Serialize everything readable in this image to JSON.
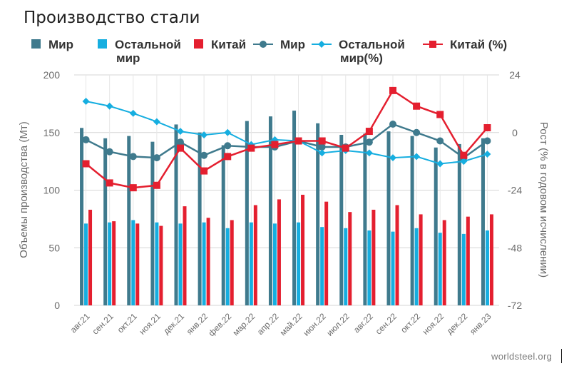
{
  "title": "Производство стали",
  "source": "worldsteel.org",
  "colors": {
    "world": "#3f7a8d",
    "rest": "#16aee0",
    "china": "#e41f2f",
    "grid": "#d6d6d6",
    "text": "#6b6b6b"
  },
  "legend": [
    {
      "id": "world_bar",
      "kind": "bar",
      "label_lines": [
        "Мир"
      ],
      "color": "#3f7a8d"
    },
    {
      "id": "rest_bar",
      "kind": "bar",
      "label_lines": [
        "Остальной",
        "мир"
      ],
      "color": "#16aee0"
    },
    {
      "id": "china_bar",
      "kind": "bar",
      "label_lines": [
        "Китай"
      ],
      "color": "#e41f2f"
    },
    {
      "id": "world_line",
      "kind": "line-circle",
      "label_lines": [
        "Мир"
      ],
      "color": "#3f7a8d"
    },
    {
      "id": "rest_line",
      "kind": "line-diamond",
      "label_lines": [
        "Остальной",
        "мир(%)"
      ],
      "color": "#16aee0"
    },
    {
      "id": "china_line",
      "kind": "line-square",
      "label_lines": [
        "Китай (%)"
      ],
      "color": "#e41f2f"
    }
  ],
  "chart_data": {
    "type": "bar",
    "categories": [
      "авг.21",
      "сен.21",
      "окт.21",
      "ноя.21",
      "дек.21",
      "янв.22",
      "фев.22",
      "мар.22",
      "апр.22",
      "май.22",
      "июн.22",
      "июл.22",
      "авг.22",
      "сен.22",
      "окт.22",
      "ноя.22",
      "дек.22",
      "янв.23"
    ],
    "ylabel": "Объемы производства (Мт)",
    "y2label": "Рост (% в годовом исчислении)",
    "ylim": [
      0,
      200
    ],
    "y2lim": [
      -72,
      24
    ],
    "yticks": [
      0,
      50,
      100,
      150,
      200
    ],
    "y2ticks": [
      -72,
      -48,
      -24,
      0,
      24
    ],
    "grid": true,
    "legend_position": "top",
    "bar_series": [
      {
        "values": [
          154,
          145,
          147,
          142,
          157,
          150,
          139,
          160,
          164,
          169,
          158,
          148,
          149,
          151,
          147,
          137,
          140,
          145
        ]
      },
      {
        "values": [
          71,
          72,
          74,
          72,
          71,
          72,
          67,
          72,
          71,
          72,
          68,
          67,
          65,
          64,
          67,
          63,
          62,
          65
        ]
      },
      {
        "values": [
          83,
          73,
          71,
          69,
          86,
          76,
          74,
          87,
          92,
          96,
          90,
          81,
          83,
          87,
          79,
          74,
          77,
          79
        ]
      }
    ],
    "line_series": [
      {
        "values": [
          -3,
          -8,
          -10,
          -10.5,
          -4,
          -9.5,
          -5.5,
          -6,
          -6,
          -3.5,
          -6,
          -6,
          -4,
          3.5,
          0,
          -3.5,
          -10.5,
          -3.5
        ]
      },
      {
        "values": [
          13,
          11,
          8,
          4.5,
          0.5,
          -1,
          0,
          -5,
          -3,
          -3.5,
          -8.5,
          -7.5,
          -8.5,
          -10.5,
          -10,
          -13,
          -12,
          -9
        ]
      },
      {
        "values": [
          -13,
          -21,
          -23,
          -22,
          -6.5,
          -16,
          -10,
          -6.5,
          -5,
          -3.5,
          -3.5,
          -6.5,
          0.5,
          17.5,
          11,
          7.5,
          -9.5,
          2
        ]
      }
    ]
  }
}
